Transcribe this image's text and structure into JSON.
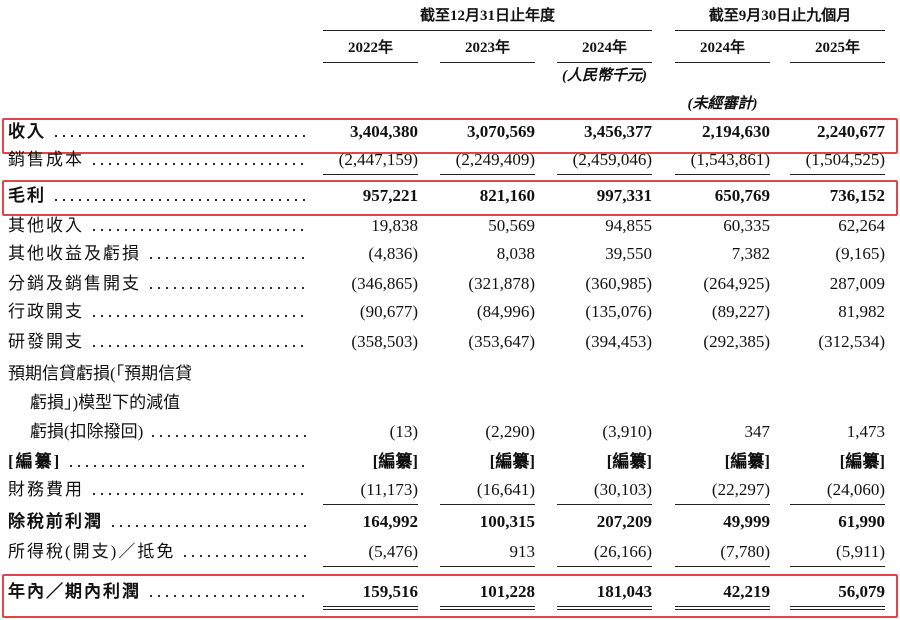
{
  "header": {
    "groups": [
      {
        "label": "截至12月31日止年度"
      },
      {
        "label": "截至9月30日止九個月"
      }
    ],
    "columns": [
      {
        "year": "2022年"
      },
      {
        "year": "2023年"
      },
      {
        "year": "2024年",
        "note": "(人民幣千元)"
      },
      {
        "year": "2024年",
        "note": "(未經審計)"
      },
      {
        "year": "2025年"
      }
    ]
  },
  "table": {
    "rows": [
      {
        "label": "收入",
        "values": [
          "3,404,380",
          "3,070,569",
          "3,456,377",
          "2,194,630",
          "2,240,677"
        ]
      },
      {
        "label": "銷售成本",
        "values": [
          "(2,447,159)",
          "(2,249,409)",
          "(2,459,046)",
          "(1,543,861)",
          "(1,504,525)"
        ]
      },
      {
        "label": "毛利",
        "values": [
          "957,221",
          "821,160",
          "997,331",
          "650,769",
          "736,152"
        ]
      },
      {
        "label": "其他收入",
        "values": [
          "19,838",
          "50,569",
          "94,855",
          "60,335",
          "62,264"
        ]
      },
      {
        "label": "其他收益及虧損",
        "values": [
          "(4,836)",
          "8,038",
          "39,550",
          "7,382",
          "(9,165)"
        ]
      },
      {
        "label": "分銷及銷售開支",
        "values": [
          "(346,865)",
          "(321,878)",
          "(360,985)",
          "(264,925)",
          "287,009"
        ]
      },
      {
        "label": "行政開支",
        "values": [
          "(90,677)",
          "(84,996)",
          "(135,076)",
          "(89,227)",
          "81,982"
        ]
      },
      {
        "label": "研發開支",
        "values": [
          "(358,503)",
          "(353,647)",
          "(394,453)",
          "(292,385)",
          "(312,534)"
        ]
      },
      {
        "label": [
          "預期信貸虧損(「預期信貸",
          "虧損」)模型下的減值",
          "虧損(扣除撥回)"
        ],
        "values": [
          "(13)",
          "(2,290)",
          "(3,910)",
          "347",
          "1,473"
        ]
      },
      {
        "label": "[編纂]",
        "values": [
          "[編纂]",
          "[編纂]",
          "[編纂]",
          "[編纂]",
          "[編纂]"
        ]
      },
      {
        "label": "財務費用",
        "values": [
          "(11,173)",
          "(16,641)",
          "(30,103)",
          "(22,297)",
          "(24,060)"
        ]
      },
      {
        "label": "除稅前利潤",
        "values": [
          "164,992",
          "100,315",
          "207,209",
          "49,999",
          "61,990"
        ]
      },
      {
        "label": "所得稅(開支)／抵免",
        "values": [
          "(5,476)",
          "913",
          "(26,166)",
          "(7,780)",
          "(5,911)"
        ]
      },
      {
        "label": "年內／期內利潤",
        "values": [
          "159,516",
          "101,228",
          "181,043",
          "42,219",
          "56,079"
        ]
      }
    ]
  }
}
